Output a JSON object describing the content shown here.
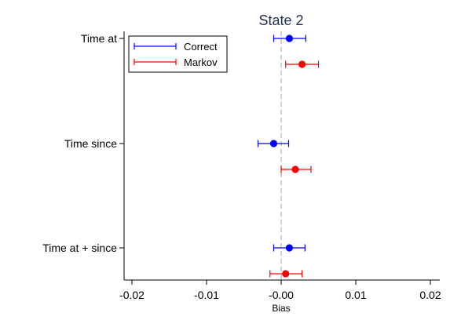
{
  "chart_data": {
    "type": "scatter",
    "title": "State 2",
    "xlabel": "Bias",
    "ylabel": "",
    "xlim": [
      -0.02,
      0.02
    ],
    "x_ticks": [
      -0.02,
      -0.01,
      0,
      0.01,
      0.02
    ],
    "x_tick_labels": [
      "-0.02",
      "-0.01",
      "-0.00",
      "0.01",
      "0.02"
    ],
    "categories": [
      "Time at",
      "Time since",
      "Time at + since"
    ],
    "reference_line": 0,
    "grid": false,
    "legend_position": "top-left",
    "series": [
      {
        "name": "Correct",
        "color": "#0000ff",
        "points": [
          {
            "category": "Time at",
            "estimate": 0.0011,
            "lower": -0.001,
            "upper": 0.0033
          },
          {
            "category": "Time since",
            "estimate": -0.001,
            "lower": -0.0031,
            "upper": 0.001
          },
          {
            "category": "Time at + since",
            "estimate": 0.0011,
            "lower": -0.001,
            "upper": 0.0032
          }
        ]
      },
      {
        "name": "Markov",
        "color": "#ff0000",
        "points": [
          {
            "category": "Time at",
            "estimate": 0.0028,
            "lower": 0.0006,
            "upper": 0.005
          },
          {
            "category": "Time since",
            "estimate": 0.0019,
            "lower": 0.0,
            "upper": 0.004
          },
          {
            "category": "Time at + since",
            "estimate": 0.0006,
            "lower": -0.0015,
            "upper": 0.0028
          }
        ]
      }
    ]
  }
}
